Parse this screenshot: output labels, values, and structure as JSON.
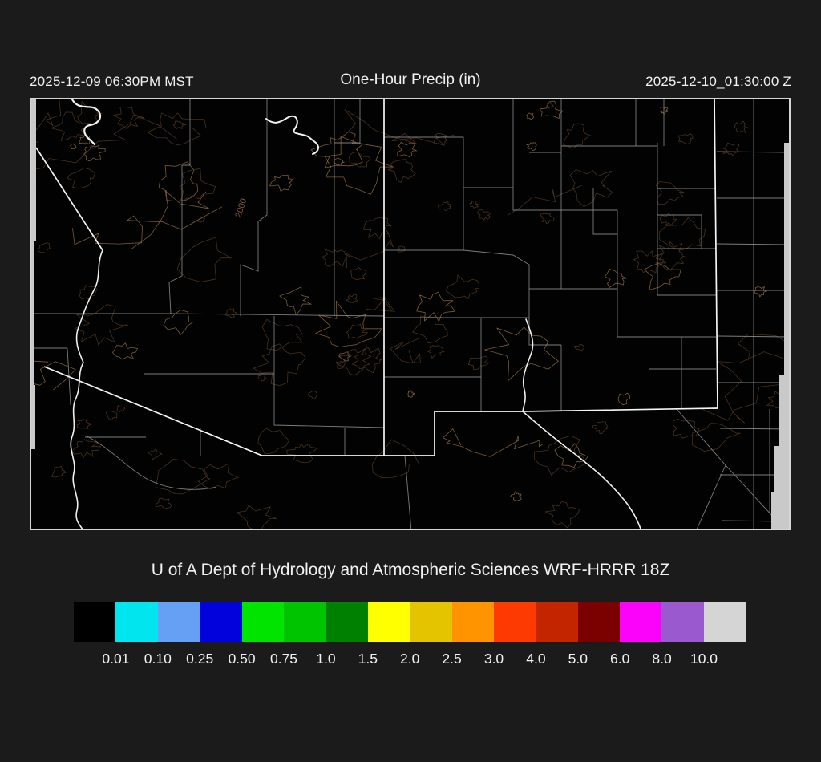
{
  "window": {
    "background": "#1b1b1b"
  },
  "header": {
    "valid_local": "2025-12-09 06:30PM MST",
    "title": "One-Hour Precip (in)",
    "valid_utc": "2025-12-10_01:30:00 Z"
  },
  "caption": "U of A Dept of Hydrology and Atmospheric Sciences WRF-HRRR 18Z",
  "map": {
    "background": "#020202",
    "frame_color": "#d6d6d6",
    "state_border_color": "#f5f5f5",
    "river_color": "#f0f0f0",
    "county_border_color": "#929292",
    "terrain_contour_color": "#46301f",
    "terrain_contour_bright_color": "#7a5a38",
    "out_of_domain_color": "#c9c9c9",
    "contour_label": "2000"
  },
  "colorbar": {
    "units": "in",
    "labels": [
      "0.01",
      "0.10",
      "0.25",
      "0.50",
      "0.75",
      "1.0",
      "1.5",
      "2.0",
      "2.5",
      "3.0",
      "4.0",
      "5.0",
      "6.0",
      "8.0",
      "10.0"
    ],
    "colors": [
      "#000000",
      "#00e5ee",
      "#66a0f5",
      "#0202dd",
      "#00e400",
      "#00c400",
      "#008000",
      "#ffff00",
      "#e4c300",
      "#ff9300",
      "#fd3a01",
      "#c32500",
      "#7b0101",
      "#fb02fb",
      "#9b59d0",
      "#d5d5d5"
    ]
  }
}
